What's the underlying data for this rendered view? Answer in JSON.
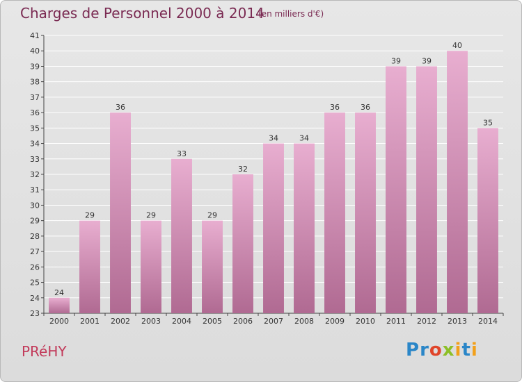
{
  "title": "Charges de Personnel 2000 à 2014",
  "subtitle": "(en milliers d'€)",
  "commune": "PRéHY",
  "logo": {
    "text": "Proxiti",
    "letters": [
      {
        "ch": "P",
        "color": "#2a86c8"
      },
      {
        "ch": "r",
        "color": "#2a86c8"
      },
      {
        "ch": "o",
        "color": "#e0452a"
      },
      {
        "ch": "x",
        "color": "#8cbf26"
      },
      {
        "ch": "i",
        "color": "#f2a01a"
      },
      {
        "ch": "t",
        "color": "#2a86c8"
      },
      {
        "ch": "i",
        "color": "#f2a01a"
      }
    ]
  },
  "colors": {
    "bar_top": "#e8aed0",
    "bar_bottom": "#b06a92",
    "axis": "#444444",
    "grid": "#ffffff",
    "text": "#333333"
  },
  "chart_data": {
    "type": "bar",
    "categories": [
      "2000",
      "2001",
      "2002",
      "2003",
      "2004",
      "2005",
      "2006",
      "2007",
      "2008",
      "2009",
      "2010",
      "2011",
      "2012",
      "2013",
      "2014"
    ],
    "values": [
      24,
      29,
      36,
      29,
      33,
      29,
      32,
      34,
      34,
      36,
      36,
      39,
      39,
      40,
      35
    ],
    "title": "Charges de Personnel 2000 à 2014",
    "subtitle": "(en milliers d'€)",
    "ylim": [
      23,
      41
    ],
    "yticks": [
      23,
      24,
      25,
      26,
      27,
      28,
      29,
      30,
      31,
      32,
      33,
      34,
      35,
      36,
      37,
      38,
      39,
      40,
      41
    ],
    "grid": true,
    "data_labels": true
  }
}
